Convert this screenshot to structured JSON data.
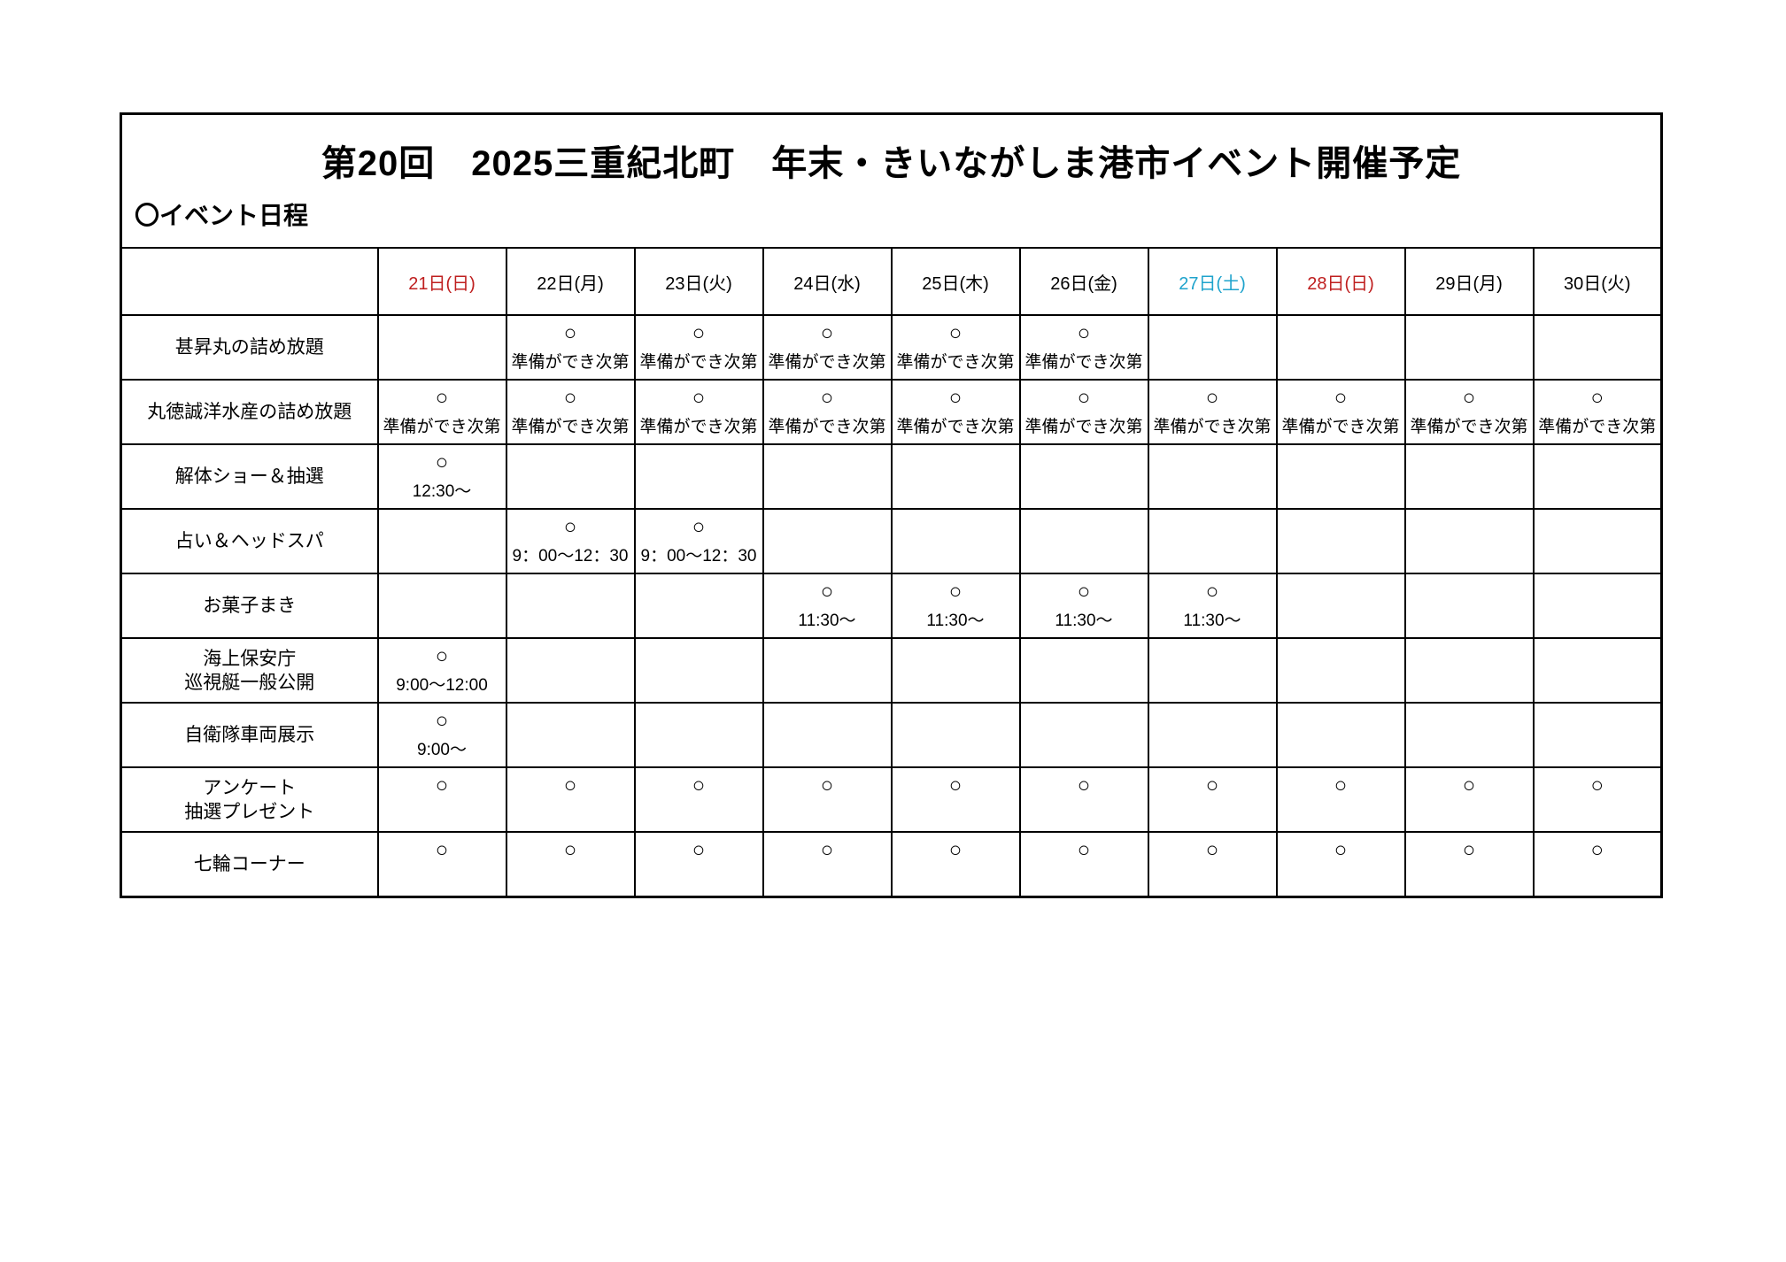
{
  "page": {
    "title": "第20回　2025三重紀北町　年末・きいながしま港市イベント開催予定",
    "section_heading": "〇イベント日程"
  },
  "colors": {
    "sunday_red": "#bf1f1f",
    "saturday_blue": "#1fa3cc",
    "text_black": "#000000"
  },
  "schedule": {
    "corner_label": "",
    "mark_symbol": "○",
    "date_headers": [
      {
        "label": "21日(日)",
        "color": "sunday_red"
      },
      {
        "label": "22日(月)",
        "color": null
      },
      {
        "label": "23日(火)",
        "color": null
      },
      {
        "label": "24日(水)",
        "color": null
      },
      {
        "label": "25日(木)",
        "color": null
      },
      {
        "label": "26日(金)",
        "color": null
      },
      {
        "label": "27日(土)",
        "color": "saturday_blue"
      },
      {
        "label": "28日(日)",
        "color": "sunday_red"
      },
      {
        "label": "29日(月)",
        "color": null
      },
      {
        "label": "30日(火)",
        "color": null
      }
    ],
    "rows": [
      {
        "label": "甚昇丸の詰め放題",
        "cells": [
          null,
          {
            "mark": "○",
            "note": "準備ができ次第"
          },
          {
            "mark": "○",
            "note": "準備ができ次第"
          },
          {
            "mark": "○",
            "note": "準備ができ次第"
          },
          {
            "mark": "○",
            "note": "準備ができ次第"
          },
          {
            "mark": "○",
            "note": "準備ができ次第"
          },
          null,
          null,
          null,
          null
        ]
      },
      {
        "label": "丸徳誠洋水産の詰め放題",
        "cells": [
          {
            "mark": "○",
            "note": "準備ができ次第"
          },
          {
            "mark": "○",
            "note": "準備ができ次第"
          },
          {
            "mark": "○",
            "note": "準備ができ次第"
          },
          {
            "mark": "○",
            "note": "準備ができ次第"
          },
          {
            "mark": "○",
            "note": "準備ができ次第"
          },
          {
            "mark": "○",
            "note": "準備ができ次第"
          },
          {
            "mark": "○",
            "note": "準備ができ次第"
          },
          {
            "mark": "○",
            "note": "準備ができ次第"
          },
          {
            "mark": "○",
            "note": "準備ができ次第"
          },
          {
            "mark": "○",
            "note": "準備ができ次第"
          }
        ]
      },
      {
        "label": "解体ショー＆抽選",
        "cells": [
          {
            "mark": "○",
            "note": "12:30～"
          },
          null,
          null,
          null,
          null,
          null,
          null,
          null,
          null,
          null
        ]
      },
      {
        "label": "占い＆ヘッドスパ",
        "cells": [
          null,
          {
            "mark": "○",
            "note": "9：00～12：30"
          },
          {
            "mark": "○",
            "note": "9：00～12：30"
          },
          null,
          null,
          null,
          null,
          null,
          null,
          null
        ]
      },
      {
        "label": "お菓子まき",
        "cells": [
          null,
          null,
          null,
          {
            "mark": "○",
            "note": "11:30～"
          },
          {
            "mark": "○",
            "note": "11:30～"
          },
          {
            "mark": "○",
            "note": "11:30～"
          },
          {
            "mark": "○",
            "note": "11:30～"
          },
          null,
          null,
          null
        ]
      },
      {
        "label": "海上保安庁\n巡視艇一般公開",
        "cells": [
          {
            "mark": "○",
            "note": "9:00～12:00"
          },
          null,
          null,
          null,
          null,
          null,
          null,
          null,
          null,
          null
        ]
      },
      {
        "label": "自衛隊車両展示",
        "cells": [
          {
            "mark": "○",
            "note": "9:00～"
          },
          null,
          null,
          null,
          null,
          null,
          null,
          null,
          null,
          null
        ]
      },
      {
        "label": "アンケート\n抽選プレゼント",
        "cells": [
          {
            "mark": "○",
            "note": ""
          },
          {
            "mark": "○",
            "note": ""
          },
          {
            "mark": "○",
            "note": ""
          },
          {
            "mark": "○",
            "note": ""
          },
          {
            "mark": "○",
            "note": ""
          },
          {
            "mark": "○",
            "note": ""
          },
          {
            "mark": "○",
            "note": ""
          },
          {
            "mark": "○",
            "note": ""
          },
          {
            "mark": "○",
            "note": ""
          },
          {
            "mark": "○",
            "note": ""
          }
        ]
      },
      {
        "label": "七輪コーナー",
        "cells": [
          {
            "mark": "○",
            "note": ""
          },
          {
            "mark": "○",
            "note": ""
          },
          {
            "mark": "○",
            "note": ""
          },
          {
            "mark": "○",
            "note": ""
          },
          {
            "mark": "○",
            "note": ""
          },
          {
            "mark": "○",
            "note": ""
          },
          {
            "mark": "○",
            "note": ""
          },
          {
            "mark": "○",
            "note": ""
          },
          {
            "mark": "○",
            "note": ""
          },
          {
            "mark": "○",
            "note": ""
          }
        ]
      }
    ]
  }
}
